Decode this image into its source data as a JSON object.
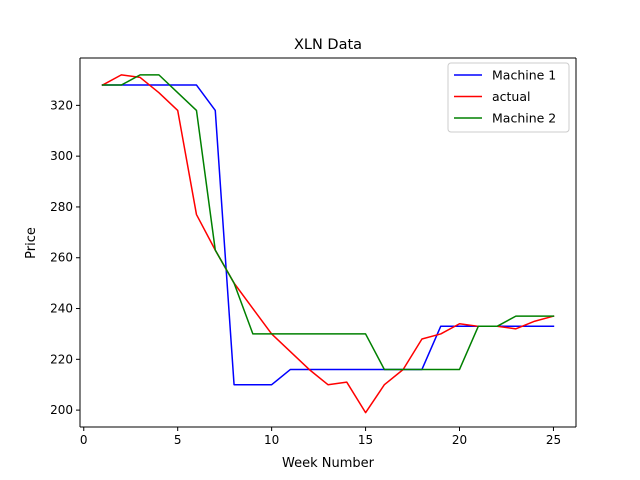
{
  "chart_data": {
    "type": "line",
    "title": "XLN Data",
    "xlabel": "Week Number",
    "ylabel": "Price",
    "xlim": [
      -0.2,
      26.2
    ],
    "ylim": [
      193.35,
      338.65
    ],
    "x_ticks": [
      0,
      5,
      10,
      15,
      20,
      25
    ],
    "y_ticks": [
      200,
      220,
      240,
      260,
      280,
      300,
      320
    ],
    "grid": false,
    "legend_position": "top-right",
    "x": [
      1,
      2,
      3,
      4,
      5,
      6,
      7,
      8,
      9,
      10,
      11,
      12,
      13,
      14,
      15,
      16,
      17,
      18,
      19,
      20,
      21,
      22,
      23,
      24,
      25
    ],
    "series": [
      {
        "name": "Machine 1",
        "color": "#0000ff",
        "values": [
          328,
          328,
          328,
          328,
          328,
          328,
          318,
          210,
          210,
          210,
          216,
          216,
          216,
          216,
          216,
          216,
          216,
          216,
          233,
          233,
          233,
          233,
          233,
          233,
          233
        ]
      },
      {
        "name": "actual",
        "color": "#ff0000",
        "values": [
          328,
          332,
          331,
          325,
          318,
          277,
          263,
          250,
          240,
          230,
          223,
          216,
          210,
          211,
          199,
          210,
          216,
          228,
          230,
          234,
          233,
          233,
          232,
          235,
          237
        ]
      },
      {
        "name": "Machine 2",
        "color": "#008000",
        "values": [
          328,
          328,
          332,
          332,
          325,
          318,
          263,
          250,
          230,
          230,
          230,
          230,
          230,
          230,
          230,
          216,
          216,
          216,
          216,
          216,
          233,
          233,
          237,
          237,
          237
        ]
      }
    ]
  }
}
